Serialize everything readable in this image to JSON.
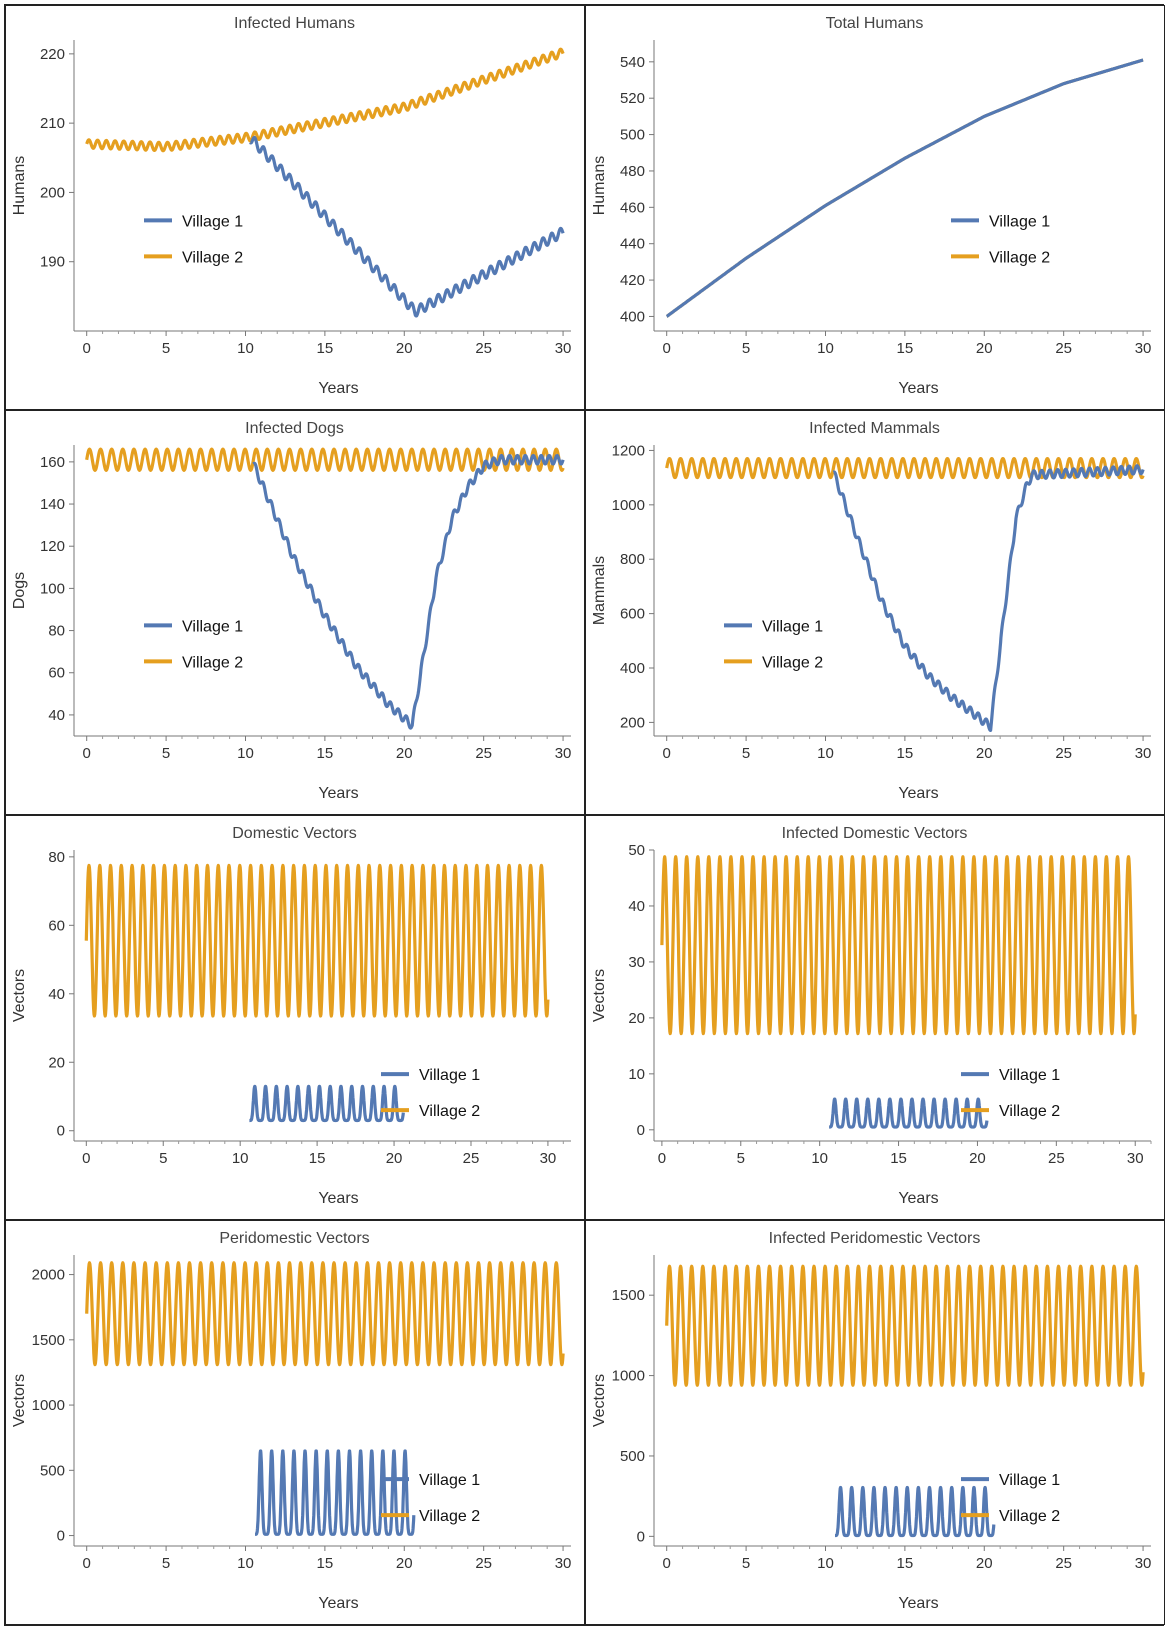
{
  "colors": {
    "village1": "#5479b3",
    "village2": "#e59f1f"
  },
  "chart_data": [
    {
      "type": "line",
      "title": "Infected Humans",
      "xlabel": "Years",
      "ylabel": "Humans",
      "xlim": [
        -0.8,
        30.5
      ],
      "ylim": [
        180,
        222
      ],
      "xticks": [
        0,
        5,
        10,
        15,
        20,
        25,
        30
      ],
      "yticks": [
        190,
        200,
        210,
        220
      ],
      "legend": [
        "Village 1",
        "Village 2"
      ],
      "legend_position": "center-left",
      "series": [
        {
          "name": "Village 1",
          "kind": "wave",
          "points": [
            [
              10.3,
              207.9
            ],
            [
              20.7,
              182.8
            ],
            [
              30.0,
              194.3
            ]
          ],
          "amp": 0.7,
          "period": 0.55
        },
        {
          "name": "Village 2",
          "kind": "wave",
          "points": [
            [
              0,
              207.0
            ],
            [
              5,
              206.6
            ],
            [
              10.3,
              208.0
            ],
            [
              20,
              212.3
            ],
            [
              30,
              220.2
            ]
          ],
          "amp": 0.6,
          "period": 0.55
        }
      ]
    },
    {
      "type": "line",
      "title": "Total Humans",
      "xlabel": "Years",
      "ylabel": "Humans",
      "xlim": [
        -0.8,
        30.5
      ],
      "ylim": [
        392,
        552
      ],
      "xticks": [
        0,
        5,
        10,
        15,
        20,
        25,
        30
      ],
      "yticks": [
        400,
        420,
        440,
        460,
        480,
        500,
        520,
        540
      ],
      "legend": [
        "Village 1",
        "Village 2"
      ],
      "legend_position": "center-right",
      "series": [
        {
          "name": "Village 1",
          "kind": "curve",
          "points": [
            [
              0,
              400
            ],
            [
              5,
              432
            ],
            [
              10,
              461
            ],
            [
              15,
              487
            ],
            [
              20,
              510
            ],
            [
              25,
              528
            ],
            [
              30,
              541
            ]
          ],
          "amp": 0,
          "period": 1
        },
        {
          "name": "Village 2",
          "kind": "curve",
          "points": [
            [
              0,
              400
            ],
            [
              5,
              432
            ],
            [
              10,
              461
            ],
            [
              15,
              487
            ],
            [
              20,
              510
            ],
            [
              25,
              528
            ],
            [
              30,
              541
            ]
          ],
          "amp": 0,
          "period": 1
        }
      ]
    },
    {
      "type": "line",
      "title": "Infected Dogs",
      "xlabel": "Years",
      "ylabel": "Dogs",
      "xlim": [
        -0.8,
        30.5
      ],
      "ylim": [
        30,
        168
      ],
      "xticks": [
        0,
        5,
        10,
        15,
        20,
        25,
        30
      ],
      "yticks": [
        40,
        60,
        80,
        100,
        120,
        140,
        160
      ],
      "legend": [
        "Village 1",
        "Village 2"
      ],
      "legend_position": "center-left",
      "series": [
        {
          "name": "Village 1",
          "kind": "wave",
          "points": [
            [
              10.5,
              159
            ],
            [
              13,
              115
            ],
            [
              15,
              87
            ],
            [
              17,
              63
            ],
            [
              19,
              45
            ],
            [
              20.5,
              35
            ],
            [
              21,
              58
            ],
            [
              22,
              105
            ],
            [
              23,
              133
            ],
            [
              24,
              148
            ],
            [
              25,
              158
            ],
            [
              26,
              161
            ],
            [
              30,
              161
            ]
          ],
          "amp": 2.0,
          "period": 0.5
        },
        {
          "name": "Village 2",
          "kind": "wave",
          "points": [
            [
              0,
              161
            ],
            [
              30,
              161
            ]
          ],
          "amp": 5.0,
          "period": 0.7
        }
      ]
    },
    {
      "type": "line",
      "title": "Infected Mammals",
      "xlabel": "Years",
      "ylabel": "Mammals",
      "xlim": [
        -0.8,
        30.5
      ],
      "ylim": [
        150,
        1220
      ],
      "xticks": [
        0,
        5,
        10,
        15,
        20,
        25,
        30
      ],
      "yticks": [
        200,
        400,
        600,
        800,
        1000,
        1200
      ],
      "legend": [
        "Village 1",
        "Village 2"
      ],
      "legend_position": "center-left",
      "series": [
        {
          "name": "Village 1",
          "kind": "wave",
          "points": [
            [
              10.5,
              1120
            ],
            [
              12,
              880
            ],
            [
              13.5,
              650
            ],
            [
              15,
              480
            ],
            [
              16.5,
              370
            ],
            [
              18,
              290
            ],
            [
              19.5,
              225
            ],
            [
              20.4,
              185
            ],
            [
              20.8,
              380
            ],
            [
              21.5,
              720
            ],
            [
              22,
              950
            ],
            [
              22.6,
              1060
            ],
            [
              23,
              1110
            ],
            [
              30,
              1130
            ]
          ],
          "amp": 15,
          "period": 0.5
        },
        {
          "name": "Village 2",
          "kind": "wave",
          "points": [
            [
              0,
              1135
            ],
            [
              30,
              1135
            ]
          ],
          "amp": 35,
          "period": 0.7
        }
      ]
    },
    {
      "type": "line",
      "title": "Domestic Vectors",
      "xlabel": "Years",
      "ylabel": "Vectors",
      "xlim": [
        -0.8,
        31.5
      ],
      "ylim": [
        -3,
        82
      ],
      "xticks": [
        0,
        5,
        10,
        15,
        20,
        25,
        30
      ],
      "yticks": [
        0,
        20,
        40,
        60,
        80
      ],
      "legend": [
        "Village 1",
        "Village 2"
      ],
      "legend_position": "bottom-right",
      "series": [
        {
          "name": "Village 1",
          "kind": "spikes",
          "points": [
            [
              10.6,
              3
            ],
            [
              20.6,
              3
            ]
          ],
          "amp": 10,
          "period": 0.7
        },
        {
          "name": "Village 2",
          "kind": "wave",
          "points": [
            [
              0,
              55.5
            ],
            [
              30,
              55.5
            ]
          ],
          "amp": 22,
          "period": 0.7
        }
      ]
    },
    {
      "type": "line",
      "title": "Infected Domestic Vectors",
      "xlabel": "Years",
      "ylabel": "Vectors",
      "xlim": [
        -0.5,
        31
      ],
      "ylim": [
        -2,
        50
      ],
      "xticks": [
        0,
        5,
        10,
        15,
        20,
        25,
        30
      ],
      "yticks": [
        0,
        10,
        20,
        30,
        40,
        50
      ],
      "legend": [
        "Village 1",
        "Village 2"
      ],
      "legend_position": "bottom-right",
      "series": [
        {
          "name": "Village 1",
          "kind": "spikes",
          "points": [
            [
              10.6,
              0.5
            ],
            [
              20.6,
              0.5
            ]
          ],
          "amp": 5,
          "period": 0.7
        },
        {
          "name": "Village 2",
          "kind": "wave",
          "points": [
            [
              0,
              33
            ],
            [
              30,
              33
            ]
          ],
          "amp": 15.8,
          "period": 0.7
        }
      ]
    },
    {
      "type": "line",
      "title": "Peridomestic Vectors",
      "xlabel": "Years",
      "ylabel": "Vectors",
      "xlim": [
        -0.8,
        30.5
      ],
      "ylim": [
        -80,
        2150
      ],
      "xticks": [
        0,
        5,
        10,
        15,
        20,
        25,
        30
      ],
      "yticks": [
        0,
        500,
        1000,
        1500,
        2000
      ],
      "legend": [
        "Village 1",
        "Village 2"
      ],
      "legend_position": "bottom-right",
      "series": [
        {
          "name": "Village 1",
          "kind": "spikes",
          "points": [
            [
              10.6,
              10
            ],
            [
              20.6,
              10
            ]
          ],
          "amp": 640,
          "period": 0.7
        },
        {
          "name": "Village 2",
          "kind": "wave",
          "points": [
            [
              0,
              1700
            ],
            [
              30,
              1700
            ]
          ],
          "amp": 390,
          "period": 0.7
        }
      ]
    },
    {
      "type": "line",
      "title": "Infected Peridomestic Vectors",
      "xlabel": "Years",
      "ylabel": "Vectors",
      "xlim": [
        -0.8,
        30.5
      ],
      "ylim": [
        -60,
        1750
      ],
      "xticks": [
        0,
        5,
        10,
        15,
        20,
        25,
        30
      ],
      "yticks": [
        0,
        500,
        1000,
        1500
      ],
      "legend": [
        "Village 1",
        "Village 2"
      ],
      "legend_position": "bottom-right",
      "series": [
        {
          "name": "Village 1",
          "kind": "spikes",
          "points": [
            [
              10.6,
              5
            ],
            [
              20.6,
              5
            ]
          ],
          "amp": 300,
          "period": 0.7
        },
        {
          "name": "Village 2",
          "kind": "wave",
          "points": [
            [
              0,
              1310
            ],
            [
              30,
              1310
            ]
          ],
          "amp": 370,
          "period": 0.7
        }
      ]
    }
  ]
}
